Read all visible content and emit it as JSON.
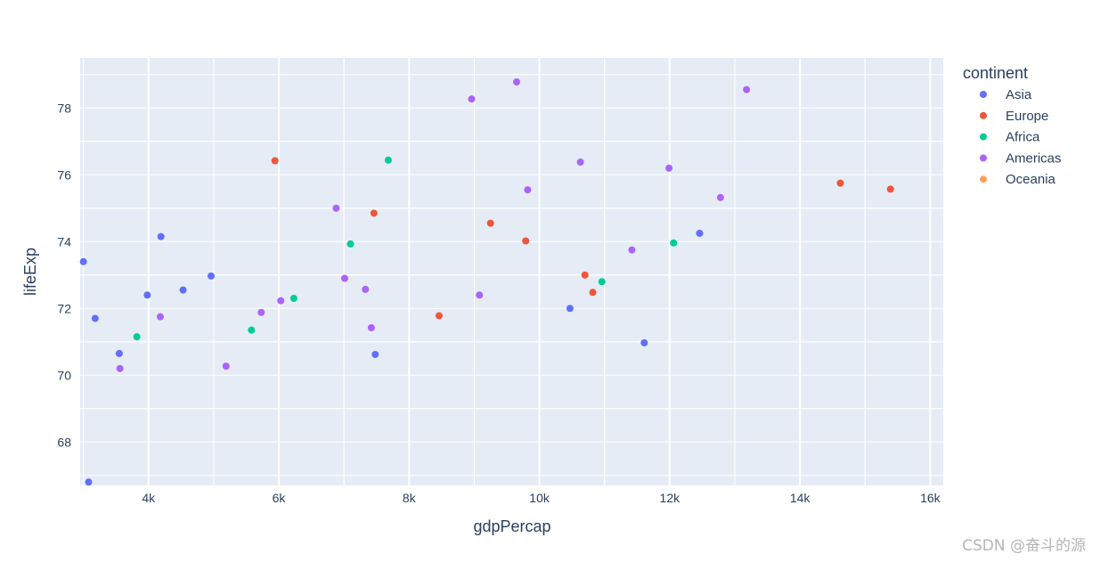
{
  "chart_data": {
    "type": "scatter",
    "xlabel": "gdpPercap",
    "ylabel": "lifeExp",
    "xlim": [
      2950,
      16200
    ],
    "ylim": [
      66.7,
      79.5
    ],
    "x_ticks": [
      {
        "value": 4000,
        "label": "4k"
      },
      {
        "value": 6000,
        "label": "6k"
      },
      {
        "value": 8000,
        "label": "8k"
      },
      {
        "value": 10000,
        "label": "10k"
      },
      {
        "value": 12000,
        "label": "12k"
      },
      {
        "value": 14000,
        "label": "14k"
      },
      {
        "value": 16000,
        "label": "16k"
      }
    ],
    "y_ticks": [
      {
        "value": 68,
        "label": "68"
      },
      {
        "value": 70,
        "label": "70"
      },
      {
        "value": 72,
        "label": "72"
      },
      {
        "value": 74,
        "label": "74"
      },
      {
        "value": 76,
        "label": "76"
      },
      {
        "value": 78,
        "label": "78"
      }
    ],
    "grid": true,
    "legend": {
      "title": "continent",
      "placement": "right"
    },
    "series": [
      {
        "name": "Asia",
        "color": "#636efa",
        "points": [
          [
            3000,
            73.4
          ],
          [
            3080,
            66.8
          ],
          [
            3180,
            71.7
          ],
          [
            3550,
            70.65
          ],
          [
            3980,
            72.4
          ],
          [
            4190,
            74.15
          ],
          [
            4530,
            72.55
          ],
          [
            4960,
            72.97
          ],
          [
            7480,
            70.62
          ],
          [
            10470,
            72.0
          ],
          [
            11610,
            70.97
          ],
          [
            12460,
            74.25
          ]
        ]
      },
      {
        "name": "Europe",
        "color": "#ef553b",
        "points": [
          [
            5940,
            76.42
          ],
          [
            7460,
            74.85
          ],
          [
            8460,
            71.78
          ],
          [
            9250,
            74.55
          ],
          [
            9790,
            74.02
          ],
          [
            10700,
            73.0
          ],
          [
            10820,
            72.48
          ],
          [
            14620,
            75.75
          ],
          [
            15390,
            75.57
          ]
        ]
      },
      {
        "name": "Africa",
        "color": "#00cc96",
        "points": [
          [
            3820,
            71.15
          ],
          [
            5580,
            71.35
          ],
          [
            6230,
            72.3
          ],
          [
            7100,
            73.93
          ],
          [
            7680,
            76.44
          ],
          [
            10960,
            72.8
          ],
          [
            12060,
            73.96
          ]
        ]
      },
      {
        "name": "Americas",
        "color": "#ab63fa",
        "points": [
          [
            3560,
            70.2
          ],
          [
            4180,
            71.75
          ],
          [
            5190,
            70.27
          ],
          [
            5730,
            71.88
          ],
          [
            6030,
            72.23
          ],
          [
            6880,
            75.0
          ],
          [
            7010,
            72.9
          ],
          [
            7330,
            72.57
          ],
          [
            7420,
            71.42
          ],
          [
            8960,
            78.27
          ],
          [
            9080,
            72.4
          ],
          [
            9650,
            78.78
          ],
          [
            9820,
            75.55
          ],
          [
            10630,
            76.38
          ],
          [
            11420,
            73.75
          ],
          [
            11990,
            76.2
          ],
          [
            12780,
            75.32
          ],
          [
            13180,
            78.55
          ]
        ]
      },
      {
        "name": "Oceania",
        "color": "#ffa15a",
        "points": []
      }
    ]
  },
  "watermark": "CSDN @奋斗的源"
}
